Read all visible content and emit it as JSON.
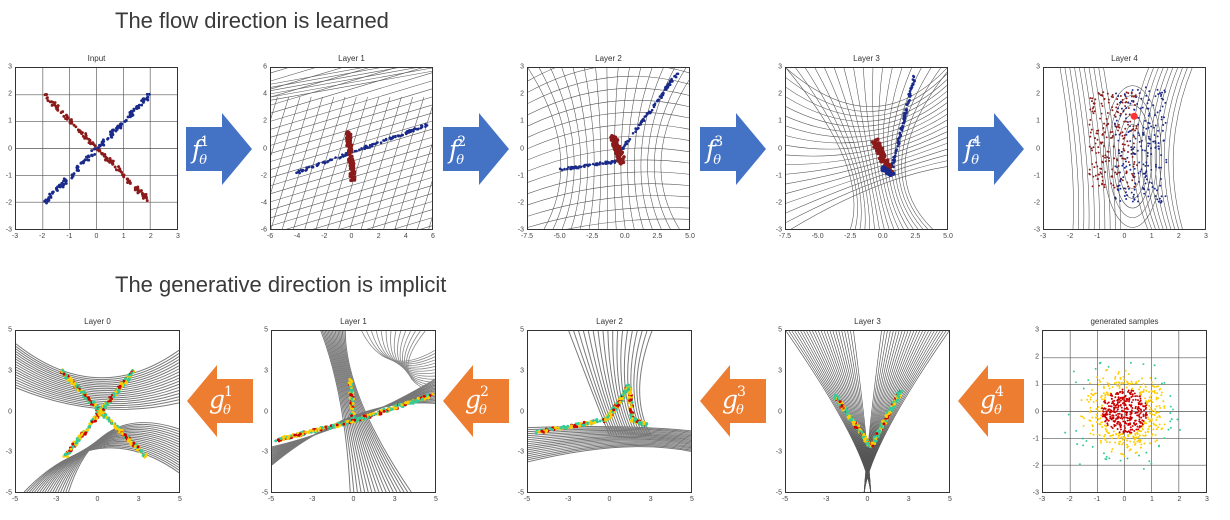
{
  "headings": {
    "flow": "The flow direction is learned",
    "generative": "The generative direction is implicit"
  },
  "flow_row": {
    "panels": [
      {
        "title": "Input",
        "yticks": [
          "3",
          "2",
          "1",
          "0",
          "-1",
          "-2",
          "-3"
        ],
        "xticks": [
          "-3",
          "-2",
          "-1",
          "0",
          "1",
          "2",
          "3"
        ]
      },
      {
        "title": "Layer 1",
        "yticks": [
          "6",
          "4",
          "2",
          "0",
          "-2",
          "-4",
          "-6"
        ],
        "xticks": [
          "-6",
          "-4",
          "-2",
          "0",
          "2",
          "4",
          "6"
        ]
      },
      {
        "title": "Layer 2",
        "yticks": [
          "3",
          "2",
          "1",
          "0",
          "-1",
          "-2",
          "-3"
        ],
        "xticks": [
          "-7.5",
          "-5.0",
          "-2.5",
          "0.0",
          "2.5",
          "5.0"
        ]
      },
      {
        "title": "Layer 3",
        "yticks": [
          "3",
          "2",
          "1",
          "0",
          "-1",
          "-2",
          "-3"
        ],
        "xticks": [
          "-7.5",
          "-5.0",
          "-2.5",
          "0.0",
          "2.5",
          "5.0"
        ]
      },
      {
        "title": "Layer 4",
        "yticks": [
          "3",
          "2",
          "1",
          "0",
          "-1",
          "-2",
          "-3"
        ],
        "xticks": [
          "-3",
          "-2",
          "-1",
          "0",
          "1",
          "2",
          "3"
        ]
      }
    ],
    "arrows": [
      {
        "symbol": "f",
        "sup": "1",
        "sub": "θ"
      },
      {
        "symbol": "f",
        "sup": "2",
        "sub": "θ"
      },
      {
        "symbol": "f",
        "sup": "3",
        "sub": "θ"
      },
      {
        "symbol": "f",
        "sup": "4",
        "sub": "θ"
      }
    ],
    "arrow_color": "#4472c4"
  },
  "generative_row": {
    "panels": [
      {
        "title": "Layer 0",
        "yticks": [
          "5",
          "3",
          "0",
          "-3",
          "-5"
        ],
        "xticks": [
          "-5",
          "-3",
          "0",
          "3",
          "5"
        ]
      },
      {
        "title": "Layer 1",
        "yticks": [
          "5",
          "3",
          "0",
          "-3",
          "-5"
        ],
        "xticks": [
          "-5",
          "-3",
          "0",
          "3",
          "5"
        ]
      },
      {
        "title": "Layer 2",
        "yticks": [
          "5",
          "3",
          "0",
          "-3",
          "-5"
        ],
        "xticks": [
          "-5",
          "-3",
          "0",
          "3",
          "5"
        ]
      },
      {
        "title": "Layer 3",
        "yticks": [
          "5",
          "3",
          "0",
          "-3",
          "-5"
        ],
        "xticks": [
          "-5",
          "-3",
          "0",
          "3",
          "5"
        ]
      },
      {
        "title": "generated samples",
        "yticks": [
          "3",
          "2",
          "1",
          "0",
          "-1",
          "-2",
          "-3"
        ],
        "xticks": [
          "-3",
          "-2",
          "-1",
          "0",
          "1",
          "2",
          "3"
        ]
      }
    ],
    "arrows": [
      {
        "symbol": "g",
        "sup": "1",
        "sub": "θ"
      },
      {
        "symbol": "g",
        "sup": "2",
        "sub": "θ"
      },
      {
        "symbol": "g",
        "sup": "3",
        "sub": "θ"
      },
      {
        "symbol": "g",
        "sup": "4",
        "sub": "θ"
      }
    ],
    "arrow_color": "#ed7d31"
  },
  "colors": {
    "class_a": "#8b1a1a",
    "class_b": "#1a2a8b",
    "grid": "#555555",
    "heat_hot": "#cc0000",
    "heat_mid": "#ffcc00",
    "heat_cool": "#33cc99"
  }
}
